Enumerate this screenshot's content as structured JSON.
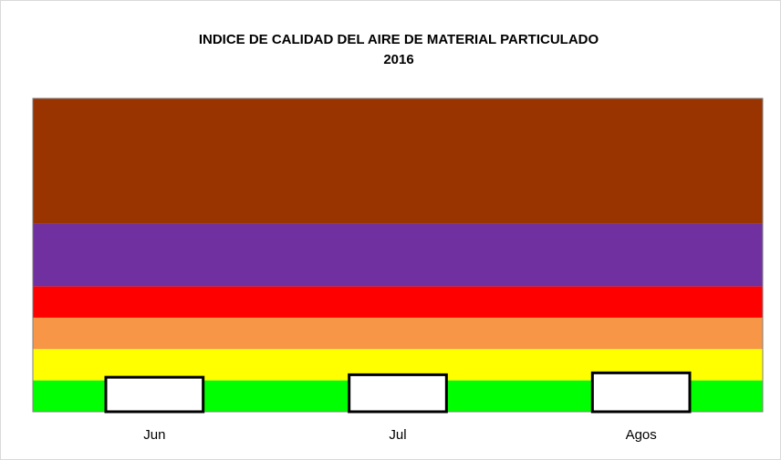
{
  "chart_data": {
    "type": "bar",
    "title": "INDICE DE CALIDAD DEL AIRE DE MATERIAL PARTICULADO",
    "subtitle": "2016",
    "categories": [
      "Jun",
      "Jul",
      "Agos"
    ],
    "values": [
      55,
      59,
      62
    ],
    "color": "#ffffff",
    "ylim": [
      0,
      500
    ],
    "bands": [
      {
        "value": 50,
        "color": "#00ff00"
      },
      {
        "value": 50,
        "color": "#ffff00"
      },
      {
        "value": 50,
        "color": "#f79646"
      },
      {
        "value": 50,
        "color": "#ff0000"
      },
      {
        "value": 100,
        "color": "#7030a0"
      },
      {
        "value": 200,
        "color": "#993300"
      }
    ]
  }
}
